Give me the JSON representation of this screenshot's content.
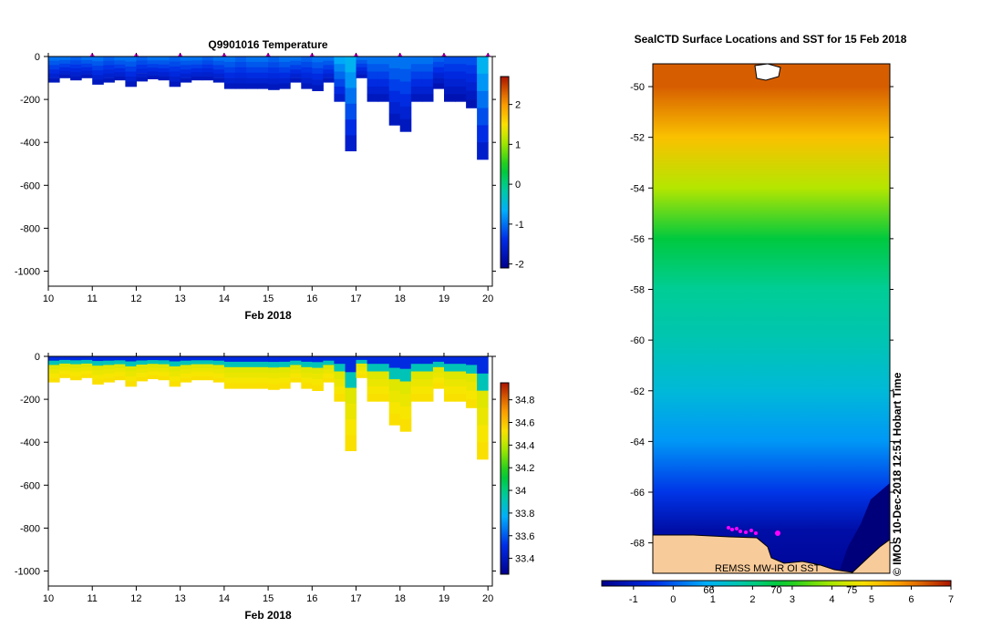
{
  "chart_data": [
    {
      "type": "heatmap",
      "title": "Q9901016  Temperature",
      "xlabel": "Feb 2018",
      "ylabel": "",
      "x_ticks": [
        10,
        11,
        12,
        13,
        14,
        15,
        16,
        17,
        18,
        19,
        20
      ],
      "y_ticks": [
        0,
        -200,
        -400,
        -600,
        -800,
        -1000
      ],
      "xlim": [
        10,
        20.1
      ],
      "ylim": [
        -1070,
        0
      ],
      "colorbar": {
        "min": -2.1,
        "max": 2.7,
        "ticks": [
          2,
          1,
          0,
          -1,
          -2
        ]
      },
      "profile_markers_day": [
        11,
        12,
        13,
        14,
        15,
        16,
        17,
        18,
        19,
        20
      ],
      "profiles": [
        {
          "t": 10.0,
          "depth": 120,
          "surface": -1.0,
          "deep": -1.7
        },
        {
          "t": 10.25,
          "depth": 100,
          "surface": -1.0,
          "deep": -1.7
        },
        {
          "t": 10.5,
          "depth": 110,
          "surface": -1.1,
          "deep": -1.7
        },
        {
          "t": 10.75,
          "depth": 100,
          "surface": -1.0,
          "deep": -1.7
        },
        {
          "t": 11.0,
          "depth": 130,
          "surface": -1.0,
          "deep": -1.7
        },
        {
          "t": 11.25,
          "depth": 120,
          "surface": -1.1,
          "deep": -1.7
        },
        {
          "t": 11.5,
          "depth": 110,
          "surface": -1.0,
          "deep": -1.7
        },
        {
          "t": 11.75,
          "depth": 140,
          "surface": -1.0,
          "deep": -1.7
        },
        {
          "t": 12.0,
          "depth": 115,
          "surface": -1.1,
          "deep": -1.7
        },
        {
          "t": 12.25,
          "depth": 105,
          "surface": -1.0,
          "deep": -1.7
        },
        {
          "t": 12.5,
          "depth": 110,
          "surface": -1.0,
          "deep": -1.7
        },
        {
          "t": 12.75,
          "depth": 140,
          "surface": -1.1,
          "deep": -1.7
        },
        {
          "t": 13.0,
          "depth": 120,
          "surface": -1.0,
          "deep": -1.7
        },
        {
          "t": 13.25,
          "depth": 110,
          "surface": -1.0,
          "deep": -1.7
        },
        {
          "t": 13.5,
          "depth": 110,
          "surface": -1.1,
          "deep": -1.7
        },
        {
          "t": 13.75,
          "depth": 120,
          "surface": -1.0,
          "deep": -1.7
        },
        {
          "t": 14.0,
          "depth": 150,
          "surface": -1.0,
          "deep": -1.7
        },
        {
          "t": 14.25,
          "depth": 150,
          "surface": -1.1,
          "deep": -1.7
        },
        {
          "t": 14.5,
          "depth": 150,
          "surface": -1.0,
          "deep": -1.7
        },
        {
          "t": 14.75,
          "depth": 150,
          "surface": -1.0,
          "deep": -1.7
        },
        {
          "t": 15.0,
          "depth": 155,
          "surface": -1.1,
          "deep": -1.7
        },
        {
          "t": 15.25,
          "depth": 150,
          "surface": -1.0,
          "deep": -1.7
        },
        {
          "t": 15.5,
          "depth": 120,
          "surface": -1.0,
          "deep": -1.7
        },
        {
          "t": 15.75,
          "depth": 150,
          "surface": -1.1,
          "deep": -1.7
        },
        {
          "t": 16.0,
          "depth": 160,
          "surface": -1.0,
          "deep": -1.7
        },
        {
          "t": 16.25,
          "depth": 120,
          "surface": -1.0,
          "deep": -1.7
        },
        {
          "t": 16.5,
          "depth": 210,
          "surface": -0.7,
          "deep": -1.6
        },
        {
          "t": 16.75,
          "depth": 440,
          "surface": -0.6,
          "deep": -1.6
        },
        {
          "t": 17.0,
          "depth": 100,
          "surface": -1.0,
          "deep": -1.7
        },
        {
          "t": 17.25,
          "depth": 210,
          "surface": -1.0,
          "deep": -1.7
        },
        {
          "t": 17.5,
          "depth": 210,
          "surface": -1.0,
          "deep": -1.7
        },
        {
          "t": 17.75,
          "depth": 320,
          "surface": -1.0,
          "deep": -1.7
        },
        {
          "t": 18.0,
          "depth": 350,
          "surface": -1.0,
          "deep": -1.7
        },
        {
          "t": 18.25,
          "depth": 210,
          "surface": -1.0,
          "deep": -1.7
        },
        {
          "t": 18.5,
          "depth": 210,
          "surface": -1.0,
          "deep": -1.7
        },
        {
          "t": 18.75,
          "depth": 150,
          "surface": -1.1,
          "deep": -1.8
        },
        {
          "t": 19.0,
          "depth": 210,
          "surface": -1.2,
          "deep": -1.8
        },
        {
          "t": 19.25,
          "depth": 210,
          "surface": -1.2,
          "deep": -1.8
        },
        {
          "t": 19.5,
          "depth": 240,
          "surface": -1.2,
          "deep": -1.8
        },
        {
          "t": 19.75,
          "depth": 480,
          "surface": -0.6,
          "deep": -1.6
        }
      ]
    },
    {
      "type": "heatmap",
      "title": "",
      "xlabel": "Feb 2018",
      "ylabel": "",
      "x_ticks": [
        10,
        11,
        12,
        13,
        14,
        15,
        16,
        17,
        18,
        19,
        20
      ],
      "y_ticks": [
        0,
        -200,
        -400,
        -600,
        -800,
        -1000
      ],
      "xlim": [
        10,
        20.1
      ],
      "ylim": [
        -1070,
        0
      ],
      "colorbar": {
        "min": 33.26,
        "max": 34.95,
        "ticks": [
          "34.8",
          "34.6",
          "34.4",
          "34.2",
          "34",
          "33.8",
          "33.6",
          "33.4"
        ]
      },
      "profiles_note": "same profiles as temperature; surface salinity ~33.5-34.0, deep ~34.5"
    },
    {
      "type": "heatmap",
      "title": "SealCTD Surface Locations and SST for 15 Feb 2018",
      "y_ticks": [
        -50,
        -52,
        -54,
        -56,
        -58,
        -60,
        -62,
        -64,
        -66,
        -68
      ],
      "ylim": [
        -69.2,
        -49.1
      ],
      "colorbar": {
        "min": -1.8,
        "max": 7,
        "ticks": [
          -1,
          0,
          1,
          2,
          3,
          4,
          5,
          6,
          7
        ]
      },
      "colorbar_overlay_labels": [
        "66",
        "70",
        "75"
      ],
      "sst_gradient": [
        {
          "lat": -50,
          "value": 6.3
        },
        {
          "lat": -52,
          "value": 5.2
        },
        {
          "lat": -54,
          "value": 4.1
        },
        {
          "lat": -56,
          "value": 2.6
        },
        {
          "lat": -58,
          "value": 1.9
        },
        {
          "lat": -60,
          "value": 1.6
        },
        {
          "lat": -62,
          "value": 1.2
        },
        {
          "lat": -64,
          "value": 0.6
        },
        {
          "lat": -66,
          "value": -0.4
        },
        {
          "lat": -67.5,
          "value": -1.4
        },
        {
          "lat": -69,
          "value": -1.6
        }
      ],
      "credit": "REMSS MW-IR OI SST",
      "side_label": "© IMOS 10-Dec-2018 12:51 Hobart Time"
    }
  ]
}
